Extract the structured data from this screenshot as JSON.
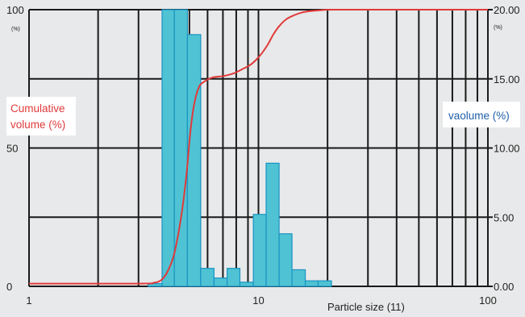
{
  "chart_data": {
    "type": "bar",
    "x_scale": "log",
    "xlim": [
      1,
      100
    ],
    "xlabel": "Particle size (11)",
    "x_ticks": [
      "1",
      "10",
      "100"
    ],
    "left_axis": {
      "title": "Cumulative volume (%)",
      "title_lines": [
        "Cumulative",
        "volume (%)"
      ],
      "unit": "(%)",
      "ylim": [
        0,
        100
      ],
      "ticks": [
        "100",
        "50",
        "0"
      ]
    },
    "right_axis": {
      "title": "vaolume (%)",
      "unit": "(%)",
      "ylim": [
        0,
        20
      ],
      "ticks": [
        "20.00",
        "15.00",
        "10.00",
        "5.00",
        "0.00"
      ]
    },
    "grid": true,
    "colors": {
      "bar_fill": "#4fc3d3",
      "bar_edge": "#1a93c4",
      "curve": "#e03a3a",
      "grid": "#1a1a1a",
      "left_title": "#e03a3a",
      "right_title": "#1f5fa8",
      "background": "#e8e9ea"
    },
    "series": [
      {
        "type": "bar",
        "axis": "right",
        "bins": [
          {
            "x0": 3.3,
            "x1": 3.8,
            "value": 0.2
          },
          {
            "x0": 3.8,
            "x1": 4.3,
            "value": 20.0
          },
          {
            "x0": 4.3,
            "x1": 4.9,
            "value": 20.0
          },
          {
            "x0": 4.9,
            "x1": 5.6,
            "value": 18.2
          },
          {
            "x0": 5.6,
            "x1": 6.4,
            "value": 1.3
          },
          {
            "x0": 6.4,
            "x1": 7.3,
            "value": 0.6
          },
          {
            "x0": 7.3,
            "x1": 8.3,
            "value": 1.3
          },
          {
            "x0": 8.3,
            "x1": 9.5,
            "value": 0.3
          },
          {
            "x0": 9.5,
            "x1": 10.8,
            "value": 5.2
          },
          {
            "x0": 10.8,
            "x1": 12.3,
            "value": 8.9
          },
          {
            "x0": 12.3,
            "x1": 14.0,
            "value": 3.8
          },
          {
            "x0": 14.0,
            "x1": 16.0,
            "value": 1.2
          },
          {
            "x0": 16.0,
            "x1": 18.2,
            "value": 0.4
          },
          {
            "x0": 18.2,
            "x1": 20.8,
            "value": 0.4
          }
        ]
      },
      {
        "type": "line",
        "axis": "left",
        "x": [
          1,
          3.0,
          3.5,
          3.8,
          4.05,
          4.3,
          4.6,
          4.85,
          5.05,
          5.25,
          5.5,
          5.8,
          6.3,
          7.0,
          7.8,
          8.5,
          9.2,
          9.8,
          10.4,
          11.0,
          11.6,
          12.3,
          13.2,
          14.3,
          15.5,
          16.8,
          18.5,
          21.0,
          30.0,
          60.0,
          100.0
        ],
        "y": [
          1,
          1,
          1.3,
          2.5,
          6,
          12,
          25,
          40,
          56,
          66,
          72,
          74,
          75.5,
          76,
          77,
          78.5,
          80,
          82,
          84.5,
          87.5,
          91,
          94,
          96.5,
          98,
          99,
          99.5,
          99.8,
          100,
          100,
          100,
          100
        ]
      }
    ]
  }
}
